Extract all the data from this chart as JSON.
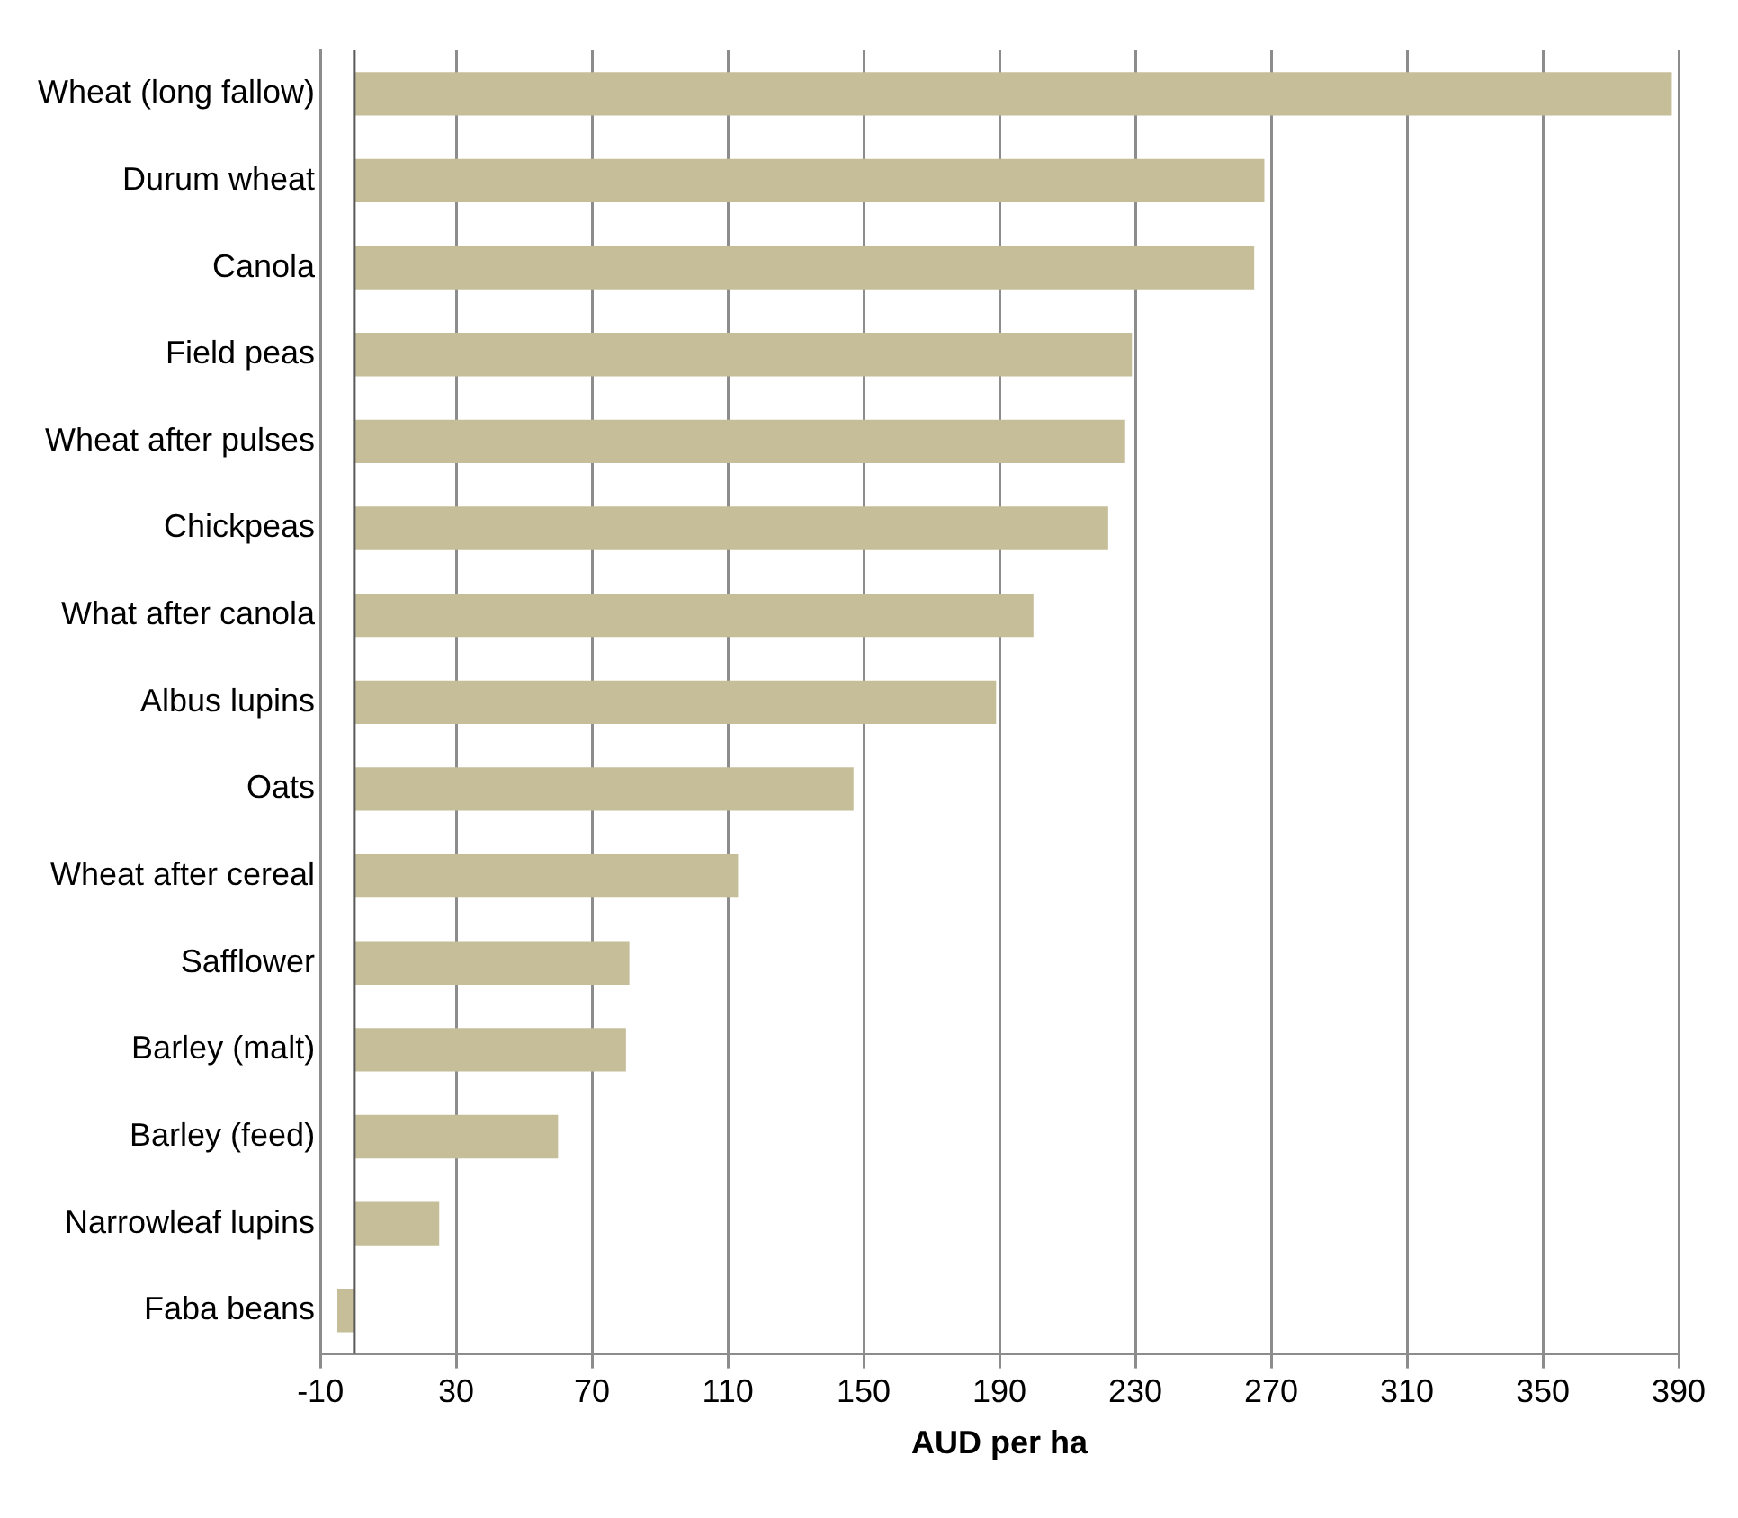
{
  "chart_data": {
    "type": "bar",
    "orientation": "horizontal",
    "xlabel": "AUD per ha",
    "categories": [
      "Wheat (long fallow)",
      "Durum wheat",
      "Canola",
      "Field peas",
      "Wheat after pulses",
      "Chickpeas",
      "What after canola",
      "Albus lupins",
      "Oats",
      "Wheat after cereal",
      "Safflower",
      "Barley (malt)",
      "Barley (feed)",
      "Narrowleaf lupins",
      "Faba beans"
    ],
    "values": [
      388,
      268,
      265,
      229,
      227,
      222,
      200,
      189,
      147,
      113,
      81,
      80,
      60,
      25,
      -5
    ],
    "color": "#c6be99",
    "xlim": [
      -10,
      390
    ],
    "xticks": [
      -10,
      30,
      70,
      110,
      150,
      190,
      230,
      270,
      310,
      350,
      390
    ],
    "grid": "x",
    "legend": false,
    "ref_lines": [
      {
        "axis": "x",
        "value": 0,
        "color": "#595959"
      }
    ]
  }
}
